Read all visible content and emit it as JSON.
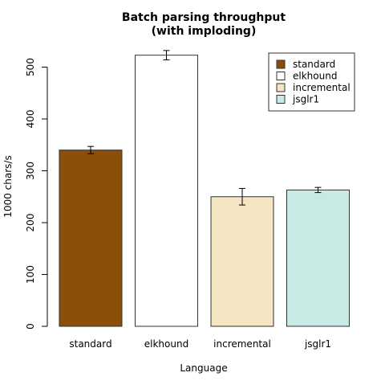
{
  "chart_data": {
    "type": "bar",
    "title": [
      "Batch parsing throughput",
      "(with imploding)"
    ],
    "xlabel": "Language",
    "ylabel": "1000 chars/s",
    "ylim": [
      0,
      540
    ],
    "yticks": [
      0,
      100,
      200,
      300,
      400,
      500
    ],
    "categories": [
      "standard",
      "elkhound",
      "incremental",
      "jsglr1"
    ],
    "series": [
      {
        "values": [
          340,
          523,
          250,
          263
        ],
        "error": [
          7,
          9,
          16,
          5
        ]
      }
    ],
    "colors": [
      "#8B4F0A",
      "#FFFFFF",
      "#F5E6C3",
      "#C8EAE4"
    ],
    "legend": {
      "position": "top-right",
      "entries": [
        "standard",
        "elkhound",
        "incremental",
        "jsglr1"
      ]
    },
    "grid": false
  }
}
